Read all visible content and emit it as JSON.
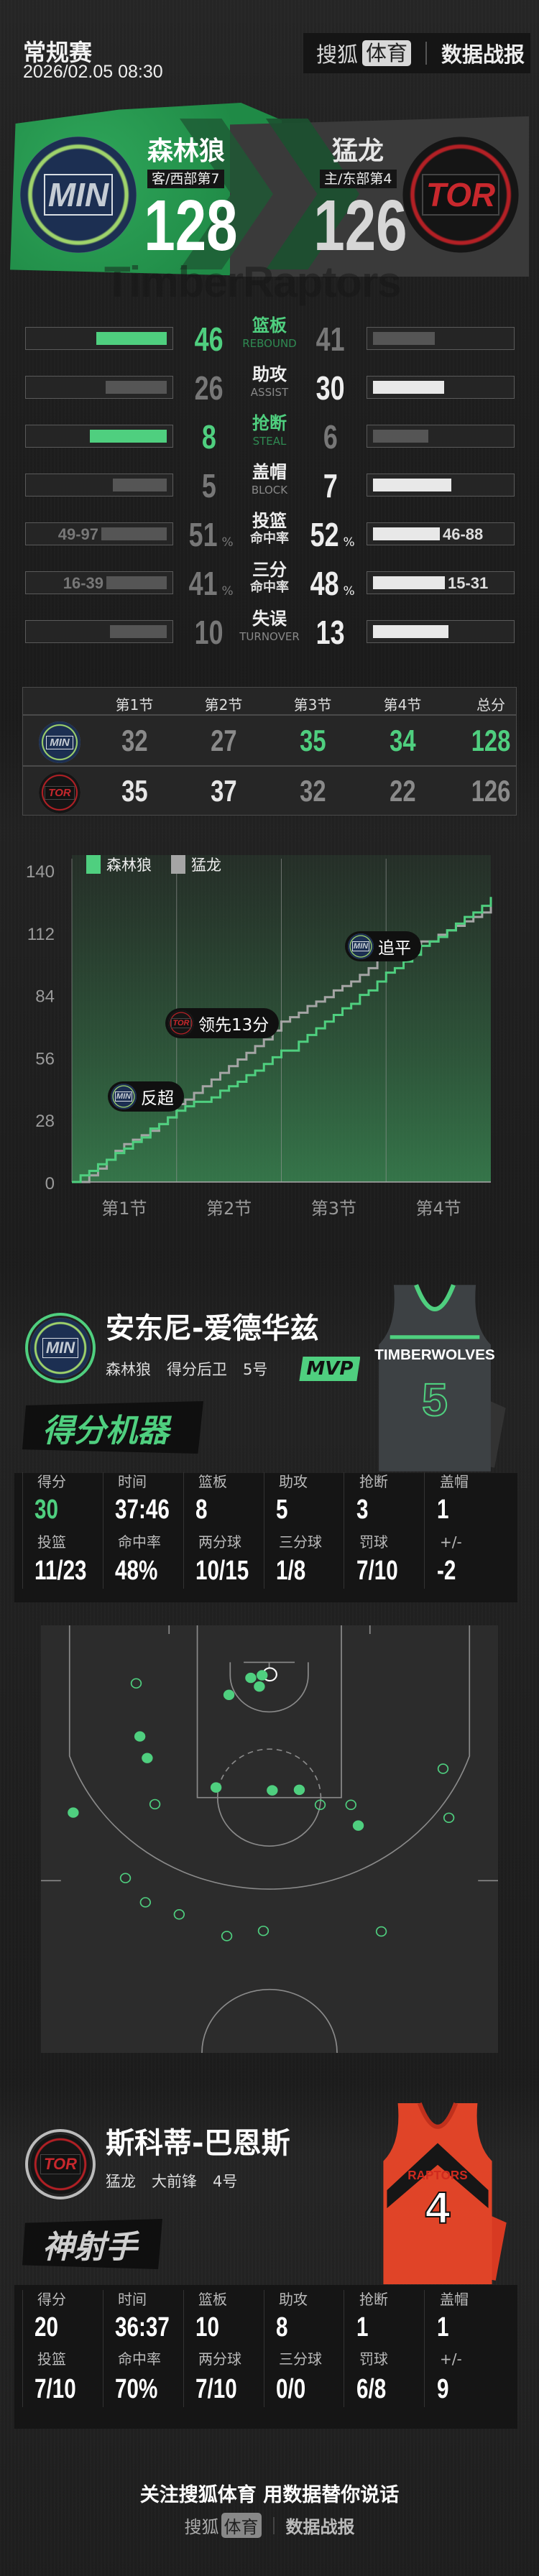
{
  "header": {
    "competition": "常规赛",
    "datetime": "2026/02.05 08:30",
    "brand": {
      "sohu": "搜狐",
      "sports": "体育",
      "report": "数据战报"
    }
  },
  "teams": {
    "away": {
      "abbr": "MIN",
      "name": "森林狼",
      "tag": "客/西部第7",
      "score": "128",
      "color": "#4fcf7f"
    },
    "home": {
      "abbr": "TOR",
      "name": "猛龙",
      "tag": "主/东部第4",
      "score": "126",
      "color": "#c8282d"
    }
  },
  "watermark": {
    "away": "Timber",
    "home": "Raptors"
  },
  "team_stats": [
    {
      "label": "篮板",
      "sub": "REBOUND",
      "away": "46",
      "home": "41"
    },
    {
      "label": "助攻",
      "sub": "ASSIST",
      "away": "26",
      "home": "30"
    },
    {
      "label": "抢断",
      "sub": "STEAL",
      "away": "8",
      "home": "6"
    },
    {
      "label": "盖帽",
      "sub": "BLOCK",
      "away": "5",
      "home": "7"
    },
    {
      "label": "投篮",
      "sub": "命中率",
      "away": "51",
      "home": "52",
      "unit": "%",
      "away_made": "49-97",
      "home_made": "46-88"
    },
    {
      "label": "三分",
      "sub": "命中率",
      "away": "41",
      "home": "48",
      "unit": "%",
      "away_made": "16-39",
      "home_made": "15-31"
    },
    {
      "label": "失误",
      "sub": "TURNOVER",
      "away": "10",
      "home": "13"
    }
  ],
  "quarters": {
    "headers": [
      "第1节",
      "第2节",
      "第3节",
      "第4节",
      "总分"
    ],
    "away": [
      "32",
      "27",
      "35",
      "34",
      "128"
    ],
    "home": [
      "35",
      "37",
      "32",
      "22",
      "126"
    ]
  },
  "chart_data": {
    "type": "line",
    "step": true,
    "legend": [
      {
        "name": "森林狼",
        "color": "#4fcf7f"
      },
      {
        "name": "猛龙",
        "color": "#a5a5a5"
      }
    ],
    "legend_position": "top-left",
    "yticks": [
      "0",
      "28",
      "56",
      "84",
      "112",
      "140"
    ],
    "ylim": [
      0,
      140
    ],
    "xlabels": [
      "第1节",
      "第2节",
      "第3节",
      "第4节"
    ],
    "x_unit_minutes": [
      0,
      48
    ],
    "series": [
      {
        "name": "森林狼",
        "values": [
          0,
          3,
          5,
          8,
          10,
          13,
          15,
          18,
          20,
          24,
          26,
          29,
          32,
          34,
          36,
          36,
          38,
          41,
          43,
          45,
          48,
          50,
          53,
          56,
          59,
          59,
          63,
          66,
          69,
          72,
          75,
          78,
          80,
          84,
          86,
          90,
          94,
          96,
          99,
          102,
          106,
          108,
          110,
          113,
          116,
          119,
          121,
          124,
          128
        ]
      },
      {
        "name": "猛龙",
        "values": [
          0,
          0,
          3,
          6,
          10,
          14,
          17,
          19,
          21,
          23,
          26,
          29,
          35,
          37,
          40,
          43,
          46,
          49,
          52,
          55,
          58,
          61,
          64,
          68,
          72,
          74,
          76,
          79,
          81,
          83,
          86,
          88,
          90,
          93,
          96,
          100,
          104,
          104,
          105,
          106,
          108,
          108,
          111,
          113,
          115,
          117,
          119,
          121,
          126
        ]
      }
    ],
    "annotations": [
      {
        "team": "MIN",
        "text": "反超"
      },
      {
        "team": "TOR",
        "text": "领先13分"
      },
      {
        "team": "MIN",
        "text": "追平"
      }
    ]
  },
  "players": [
    {
      "name": "安东尼-爱德华兹",
      "team": "森林狼",
      "position": "得分后卫",
      "number_label": "5号",
      "badge": "MVP",
      "title": "得分机器",
      "team_abbr": "MIN",
      "jersey": {
        "text": "TIMBERWOLVES",
        "number": "5"
      },
      "stats": [
        [
          {
            "label": "得分",
            "value": "30"
          },
          {
            "label": "时间",
            "value": "37:46"
          },
          {
            "label": "篮板",
            "value": "8"
          },
          {
            "label": "助攻",
            "value": "5"
          },
          {
            "label": "抢断",
            "value": "3"
          },
          {
            "label": "盖帽",
            "value": "1"
          }
        ],
        [
          {
            "label": "投篮",
            "value": "11/23"
          },
          {
            "label": "命中率",
            "value": "48%"
          },
          {
            "label": "两分球",
            "value": "10/15"
          },
          {
            "label": "三分球",
            "value": "1/8"
          },
          {
            "label": "罚球",
            "value": "7/10"
          },
          {
            "label": "+/-",
            "value": "-2"
          }
        ]
      ],
      "shot_chart": {
        "made": 11,
        "attempts": 23
      }
    },
    {
      "name": "斯科蒂-巴恩斯",
      "team": "猛龙",
      "position": "大前锋",
      "number_label": "4号",
      "title": "神射手",
      "team_abbr": "TOR",
      "jersey": {
        "text": "RAPTORS",
        "number": "4"
      },
      "stats": [
        [
          {
            "label": "得分",
            "value": "20"
          },
          {
            "label": "时间",
            "value": "36:37"
          },
          {
            "label": "篮板",
            "value": "10"
          },
          {
            "label": "助攻",
            "value": "8"
          },
          {
            "label": "抢断",
            "value": "1"
          },
          {
            "label": "盖帽",
            "value": "1"
          }
        ],
        [
          {
            "label": "投篮",
            "value": "7/10"
          },
          {
            "label": "命中率",
            "value": "70%"
          },
          {
            "label": "两分球",
            "value": "7/10"
          },
          {
            "label": "三分球",
            "value": "0/0"
          },
          {
            "label": "罚球",
            "value": "6/8"
          },
          {
            "label": "+/-",
            "value": "9"
          }
        ]
      ]
    }
  ],
  "footer": {
    "slogan": "关注搜狐体育 用数据替你说话",
    "sohu": "搜狐",
    "sports": "体育",
    "report": "数据战报"
  },
  "colors": {
    "green": "#4fcf7f",
    "gray": "#a5a5a5",
    "red": "#c8282d",
    "white": "#e8e8e8"
  }
}
